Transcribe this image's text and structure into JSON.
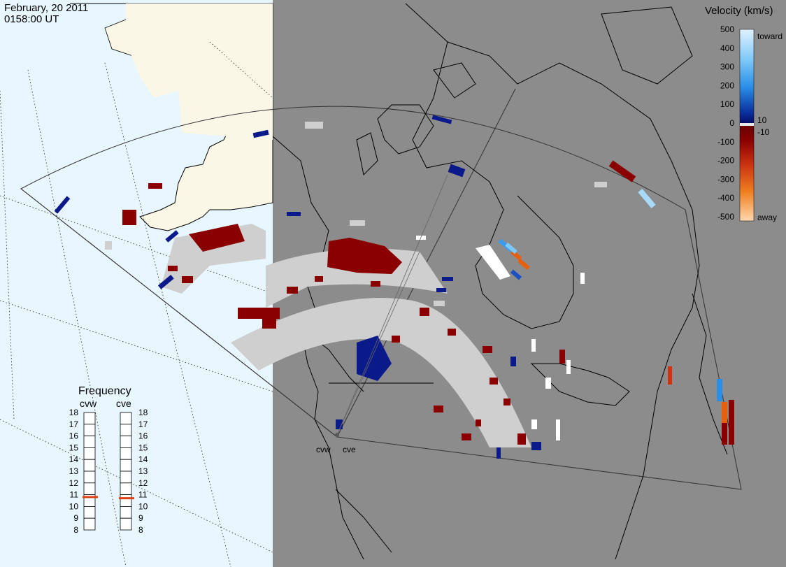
{
  "header": {
    "date": "February, 20 2011",
    "time": "0158:00 UT"
  },
  "colors": {
    "ocean_day": "#e8f6ff",
    "land_day": "#fbf7e6",
    "night": "#8c8c8c",
    "ground_scatter": "#cfcfcf",
    "toward_dark": "#0a1a8a",
    "away_dark": "#8a0000"
  },
  "legend": {
    "title": "Velocity (km/s)",
    "toward_label": "toward",
    "away_label": "away",
    "ticks": [
      "500",
      "400",
      "300",
      "200",
      "100",
      "0",
      "-100",
      "-200",
      "-300",
      "-400",
      "-500"
    ],
    "small_pos": "10",
    "small_neg": "-10"
  },
  "frequency": {
    "title": "Frequency",
    "radars": [
      {
        "label": "cvw",
        "value_mhz": 10.8
      },
      {
        "label": "cve",
        "value_mhz": 10.7
      }
    ],
    "ticks": [
      "18",
      "17",
      "16",
      "15",
      "14",
      "13",
      "12",
      "11",
      "10",
      "9",
      "8"
    ],
    "marker_color": "#e04010"
  },
  "radar_labels": {
    "west": "cvw",
    "east": "cve"
  }
}
